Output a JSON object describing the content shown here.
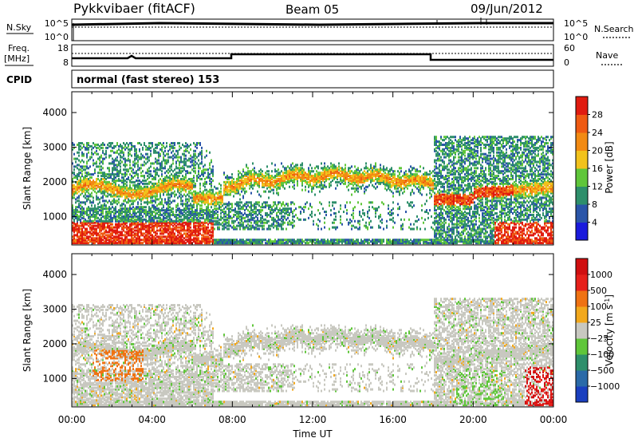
{
  "header": {
    "site": "Pykkvibaer (fitACF)",
    "beam": "Beam 05",
    "date": "09/Jun/2012"
  },
  "nsky_panel": {
    "left_label": "N.Sky",
    "left_ticks": [
      "10^5",
      "10^0"
    ],
    "right_ticks": [
      "10^5",
      "10^0"
    ],
    "right_label": "N.Search"
  },
  "freq_panel": {
    "left_label_1": "Freq.",
    "left_label_2": "[MHz]",
    "left_ticks": [
      "18",
      "8"
    ],
    "right_ticks": [
      "60",
      "0"
    ],
    "right_label": "Nave"
  },
  "cpid": {
    "label": "CPID",
    "value": "normal (fast stereo) 153"
  },
  "chart_data": [
    {
      "type": "heatmap",
      "title": "",
      "ylabel": "Slant Range [km]",
      "ylim": [
        180,
        4600
      ],
      "yticks": [
        "1000",
        "2000",
        "3000",
        "4000"
      ],
      "xlim": [
        0,
        24
      ],
      "xticks": [
        "00:00",
        "04:00",
        "08:00",
        "12:00",
        "16:00",
        "20:00",
        "00:00"
      ],
      "colorbar": {
        "label": "Power [dB]",
        "ticks": [
          "4",
          "8",
          "12",
          "16",
          "20",
          "24",
          "28"
        ],
        "colors": [
          "#1a1adc",
          "#2a55a8",
          "#2e8f6b",
          "#5fc63a",
          "#f2c21c",
          "#f28a12",
          "#ef5a12",
          "#e01b10"
        ]
      }
    },
    {
      "type": "heatmap",
      "title": "",
      "ylabel": "Slant Range [km]",
      "ylim": [
        180,
        4600
      ],
      "yticks": [
        "1000",
        "2000",
        "3000",
        "4000"
      ],
      "xlim": [
        0,
        24
      ],
      "xticks": [
        "00:00",
        "04:00",
        "08:00",
        "12:00",
        "16:00",
        "20:00",
        "00:00"
      ],
      "xlabel": "Time UT",
      "colorbar": {
        "label": "Velocity [m s",
        "label_sup": "-1",
        "label_end": "]",
        "ticks": [
          "1000",
          "500",
          "100",
          "25",
          "−25",
          "−100",
          "−500",
          "−1000"
        ],
        "colors": [
          "#1a3fbf",
          "#2a6aa8",
          "#2e8f6b",
          "#5fc63a",
          "#c8c8c0",
          "#f2a81c",
          "#ef7212",
          "#e6201a",
          "#d00f10"
        ]
      }
    }
  ]
}
